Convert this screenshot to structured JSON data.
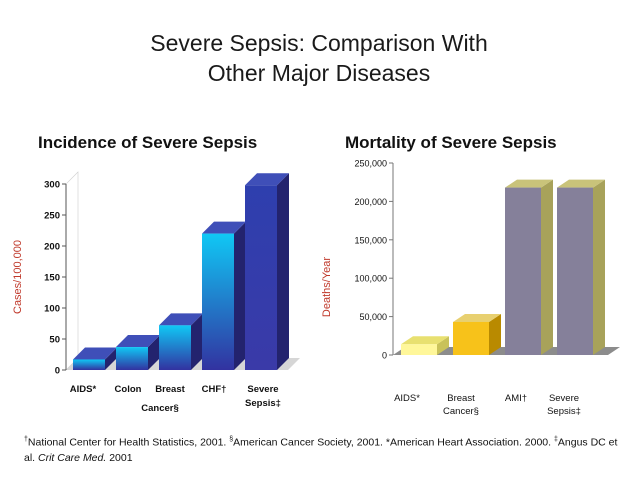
{
  "slide": {
    "title_line1": "Severe Sepsis: Comparison With",
    "title_line2": "Other Major Diseases"
  },
  "footnote": {
    "part1_mark": "†",
    "part1": "National Center for Health Statistics, 2001. ",
    "part2_mark": "§",
    "part2": "American Cancer Society, 2001. *American Heart Association. 2000. ",
    "part3_mark": "‡",
    "part3": "Angus DC et al. ",
    "journal": "Crit Care Med.",
    "year": " 2001"
  },
  "chart_data": [
    {
      "type": "bar",
      "title": "Incidence of Severe Sepsis",
      "ylabel": "Cases/100,000",
      "xlabel": "",
      "ylim": [
        0,
        300
      ],
      "yticks": [
        "0",
        "50",
        "100",
        "150",
        "200",
        "250",
        "300"
      ],
      "categories": [
        {
          "line1": "AIDS*",
          "line2": ""
        },
        {
          "line1": "Colon",
          "line2": ""
        },
        {
          "line1": "Breast",
          "line2": "Cancer§"
        },
        {
          "line1": "CHF†",
          "line2": ""
        },
        {
          "line1": "Severe",
          "line2": "Sepsis‡"
        }
      ],
      "values": [
        17,
        37,
        72,
        220,
        298
      ],
      "colors": {
        "top": "#10c8f5",
        "bottom": "#3232a0",
        "side": "#23236e",
        "cap": "#3f4fb8"
      },
      "grid": false
    },
    {
      "type": "bar",
      "title": "Mortality of Severe Sepsis",
      "ylabel": "Deaths/Year",
      "xlabel": "",
      "ylim": [
        0,
        250000
      ],
      "yticks": [
        "0",
        "50,000",
        "100,000",
        "150,000",
        "200,000",
        "250,000"
      ],
      "categories": [
        {
          "line1": "AIDS*",
          "line2": ""
        },
        {
          "line1": "Breast",
          "line2": "Cancer§"
        },
        {
          "line1": "AMI†",
          "line2": ""
        },
        {
          "line1": "Severe",
          "line2": "Sepsis‡"
        }
      ],
      "values": [
        14000,
        43000,
        218000,
        218000
      ],
      "colors": [
        {
          "front": "#fff79a",
          "side": "#c9c25a",
          "cap": "#e8e070"
        },
        {
          "front": "#f7c21a",
          "side": "#b98a00",
          "cap": "#e8d070"
        },
        {
          "front": "#85809a",
          "side": "#a8a25a",
          "cap": "#c9c37a"
        },
        {
          "front": "#85809a",
          "side": "#a8a25a",
          "cap": "#c9c37a"
        }
      ],
      "grid": false
    }
  ]
}
